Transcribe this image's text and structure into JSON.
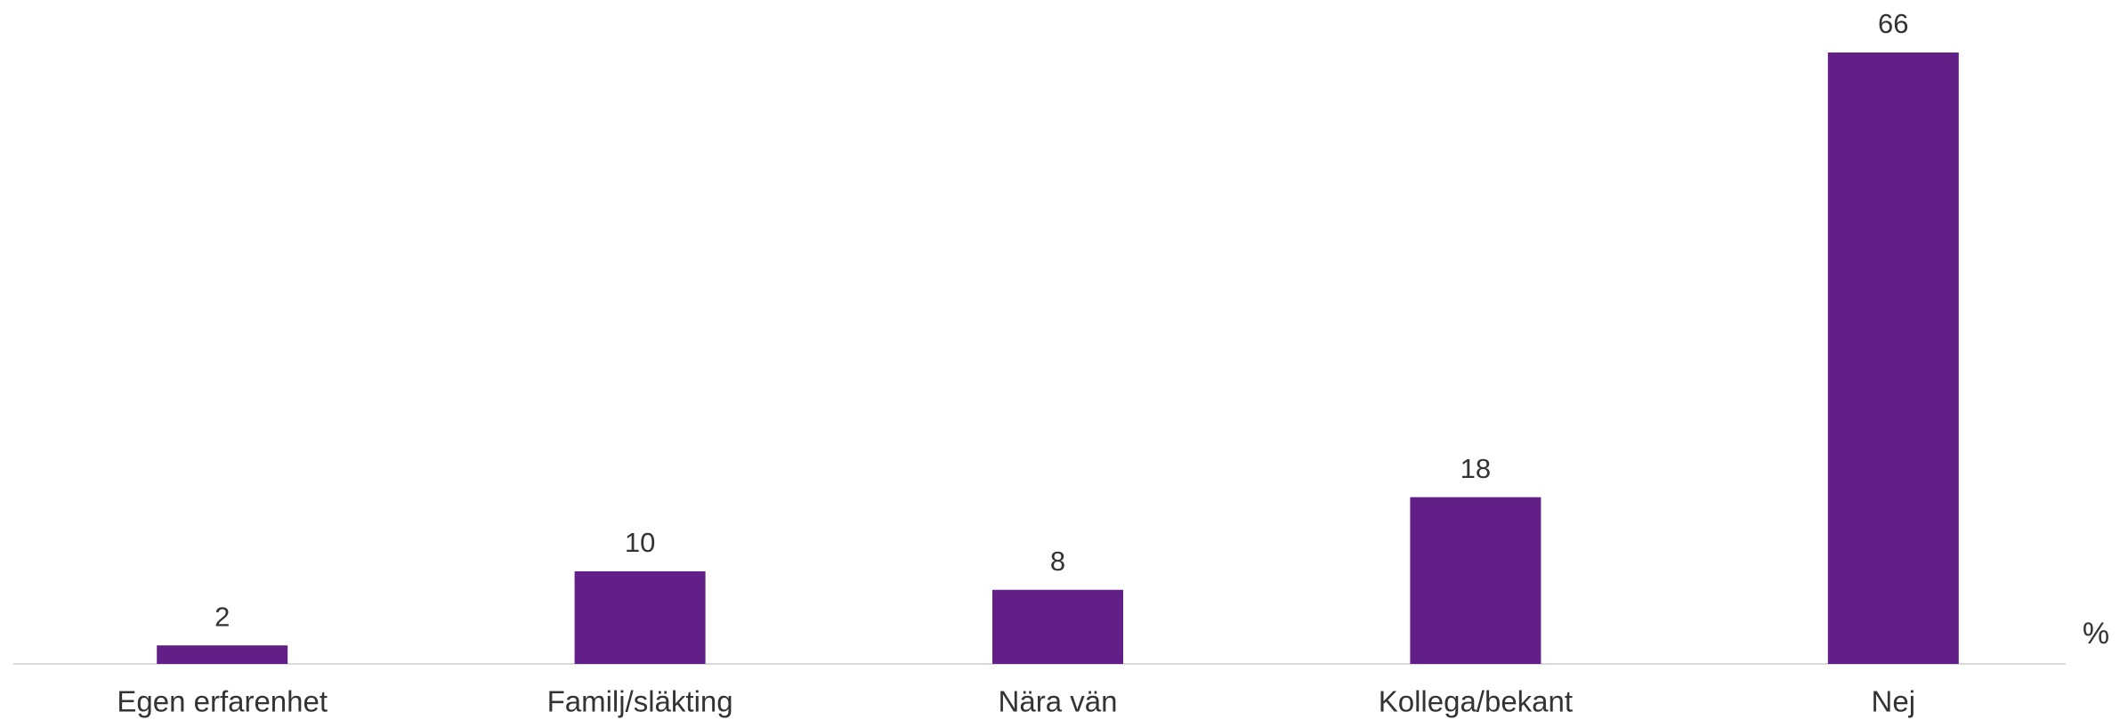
{
  "chart_data": {
    "type": "bar",
    "categories": [
      "Egen erfarenhet",
      "Familj/släkting",
      "Nära vän",
      "Kollega/bekant",
      "Nej"
    ],
    "values": [
      2,
      10,
      8,
      18,
      66
    ],
    "color": "#621f87",
    "unit_label": "%"
  }
}
